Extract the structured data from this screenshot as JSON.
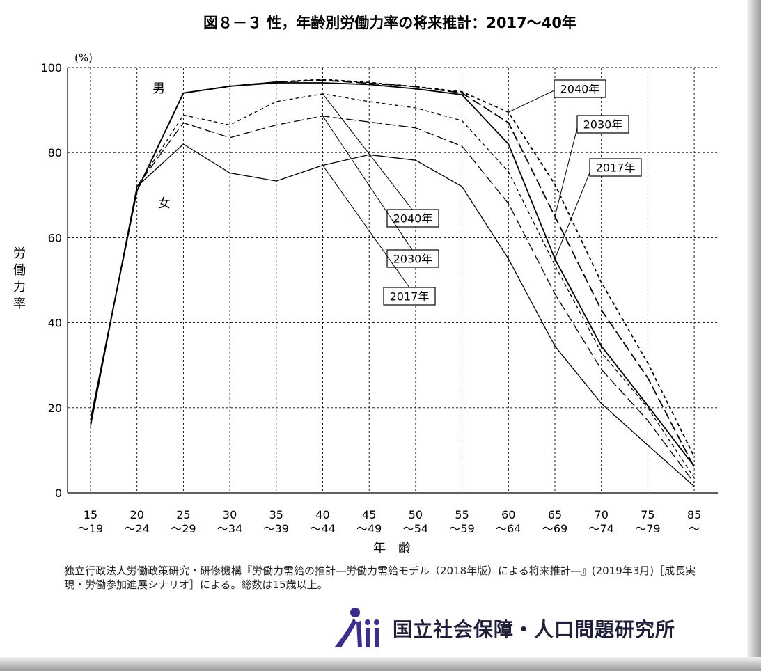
{
  "chart_data": {
    "type": "line",
    "title": "図８－３ 性，年齢別労働力率の将来推計：2017～40年",
    "ylabel": "労働力率",
    "yunit": "(%)",
    "xlabel": "年　齢",
    "ylim": [
      0,
      100
    ],
    "yticks": [
      "0",
      "20",
      "40",
      "60",
      "80",
      "100"
    ],
    "grid": true,
    "categories": [
      {
        "top": "15",
        "bottom": "～19"
      },
      {
        "top": "20",
        "bottom": "～24"
      },
      {
        "top": "25",
        "bottom": "～29"
      },
      {
        "top": "30",
        "bottom": "～34"
      },
      {
        "top": "35",
        "bottom": "～39"
      },
      {
        "top": "40",
        "bottom": "～44"
      },
      {
        "top": "45",
        "bottom": "～49"
      },
      {
        "top": "50",
        "bottom": "～54"
      },
      {
        "top": "55",
        "bottom": "～59"
      },
      {
        "top": "60",
        "bottom": "～64"
      },
      {
        "top": "65",
        "bottom": "～69"
      },
      {
        "top": "70",
        "bottom": "～74"
      },
      {
        "top": "75",
        "bottom": "～79"
      },
      {
        "top": "85",
        "bottom": "～"
      }
    ],
    "group_labels": {
      "male": "男",
      "female": "女"
    },
    "series": [
      {
        "sex": "male",
        "year": "2017年",
        "style": "solid",
        "values": [
          17.0,
          71.0,
          94.0,
          95.6,
          96.4,
          96.4,
          96.0,
          95.0,
          93.6,
          82.0,
          55.0,
          34.5,
          20.5,
          6.2
        ]
      },
      {
        "sex": "male",
        "year": "2030年",
        "style": "longdash",
        "values": [
          17.0,
          71.0,
          94.0,
          95.6,
          96.6,
          97.0,
          96.3,
          95.5,
          94.0,
          87.0,
          65.0,
          43.0,
          27.0,
          6.0
        ]
      },
      {
        "sex": "male",
        "year": "2040年",
        "style": "shortdash",
        "values": [
          17.0,
          71.0,
          94.0,
          95.6,
          96.6,
          97.2,
          96.5,
          95.5,
          94.3,
          89.5,
          72.5,
          49.5,
          30.5,
          8.5
        ]
      },
      {
        "sex": "female",
        "year": "2017年",
        "style": "solid",
        "values": [
          15.5,
          72.0,
          82.0,
          75.2,
          73.3,
          77.0,
          79.5,
          78.2,
          72.0,
          55.0,
          34.5,
          21.0,
          11.2,
          1.5
        ]
      },
      {
        "sex": "female",
        "year": "2030年",
        "style": "longdash",
        "values": [
          16.0,
          72.0,
          87.0,
          83.5,
          86.5,
          88.6,
          87.2,
          85.8,
          81.5,
          68.0,
          46.8,
          29.0,
          17.0,
          2.3
        ]
      },
      {
        "sex": "female",
        "year": "2040年",
        "style": "shortdash",
        "values": [
          16.5,
          72.0,
          88.8,
          86.5,
          92.0,
          93.8,
          92.0,
          90.5,
          87.5,
          75.5,
          53.5,
          33.0,
          20.0,
          3.5
        ]
      }
    ]
  },
  "note": "独立行政法人労働政策研究・研修機構『労働力需給の推計―労働力需給モデル（2018年版）による将来推計―』(2019年3月)［成長実現・労働参加進展シナリオ］による。総数は15歳以上。",
  "organization": "国立社会保障・人口問題研究所",
  "colors": {
    "line": "#000000",
    "grid": "#000000",
    "logo": "#3a2f8f"
  }
}
